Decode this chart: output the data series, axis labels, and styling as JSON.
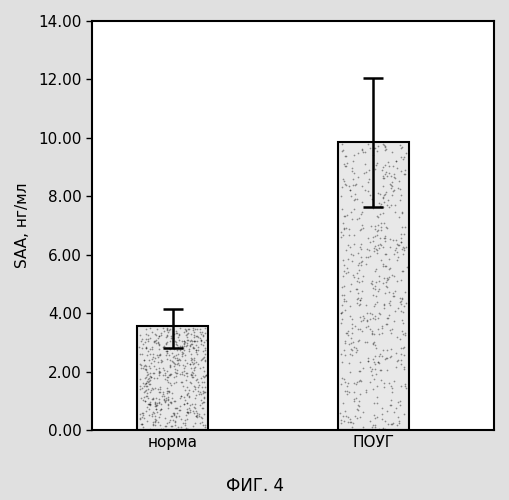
{
  "categories": [
    "норма",
    "ПОУГ"
  ],
  "values": [
    3.55,
    9.85
  ],
  "errors_upper": [
    0.6,
    2.2
  ],
  "errors_lower": [
    0.75,
    2.2
  ],
  "ylim": [
    0.0,
    14.0
  ],
  "yticks": [
    0.0,
    2.0,
    4.0,
    6.0,
    8.0,
    10.0,
    12.0,
    14.0
  ],
  "ylabel": "SAA, нг/мл",
  "caption": "ФИГ. 4",
  "bar_color": "#e8e8e8",
  "bar_edge_color": "#000000",
  "bar_width": 0.35,
  "figure_bg": "#e0e0e0",
  "axes_bg": "#ffffff",
  "tick_fontsize": 11,
  "label_fontsize": 11,
  "caption_fontsize": 12
}
